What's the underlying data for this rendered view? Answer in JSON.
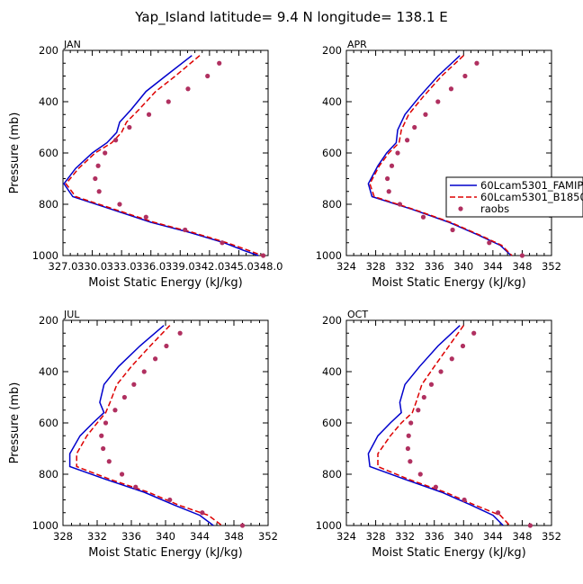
{
  "figure_title": "Yap_Island  latitude= 9.4 N longitude= 138.1 E",
  "legend": {
    "entries": [
      {
        "label": "60Lcam5301_FAMIP",
        "color": "#0000cc",
        "style": "solid"
      },
      {
        "label": "60Lcam5301_B1850",
        "color": "#dd0000",
        "style": "dashed"
      },
      {
        "label": "raobs",
        "color": "#b03060",
        "style": "dots"
      }
    ]
  },
  "chart_data": [
    {
      "type": "line",
      "title": "JAN",
      "xlabel": "Moist Static Energy (kJ/kg)",
      "ylabel": "Pressure (mb)",
      "xlim": [
        327.0,
        348.0
      ],
      "ylim": [
        1000,
        200
      ],
      "xticks": [
        "327.0",
        "330.0",
        "333.0",
        "336.0",
        "339.0",
        "342.0",
        "345.0",
        "348.0"
      ],
      "xtick_values": [
        327,
        330,
        333,
        336,
        339,
        342,
        345,
        348
      ],
      "yticks": [
        200,
        400,
        600,
        800,
        1000
      ],
      "series": [
        {
          "name": "60Lcam5301_FAMIP",
          "color": "#0000cc",
          "style": "solid",
          "points": [
            [
              340.2,
              220
            ],
            [
              337.5,
              300
            ],
            [
              335.5,
              360
            ],
            [
              334.0,
              430
            ],
            [
              332.8,
              480
            ],
            [
              332.5,
              520
            ],
            [
              331.5,
              560
            ],
            [
              330.0,
              600
            ],
            [
              328.3,
              660
            ],
            [
              327.1,
              720
            ],
            [
              328.0,
              770
            ],
            [
              332.0,
              820
            ],
            [
              336.0,
              870
            ],
            [
              340.0,
              910
            ],
            [
              343.5,
              950
            ],
            [
              345.5,
              980
            ],
            [
              347.0,
              1000
            ]
          ]
        },
        {
          "name": "60Lcam5301_B1850",
          "color": "#dd0000",
          "style": "dashed",
          "points": [
            [
              341.0,
              220
            ],
            [
              338.5,
              300
            ],
            [
              336.5,
              360
            ],
            [
              334.8,
              430
            ],
            [
              333.5,
              480
            ],
            [
              333.0,
              520
            ],
            [
              332.0,
              560
            ],
            [
              330.3,
              600
            ],
            [
              328.6,
              660
            ],
            [
              327.3,
              720
            ],
            [
              328.3,
              770
            ],
            [
              332.3,
              820
            ],
            [
              336.3,
              870
            ],
            [
              340.3,
              910
            ],
            [
              343.8,
              950
            ],
            [
              346.0,
              980
            ],
            [
              347.4,
              1000
            ]
          ]
        },
        {
          "name": "raobs",
          "color": "#b03060",
          "style": "dots",
          "points": [
            [
              343.0,
              250
            ],
            [
              341.8,
              300
            ],
            [
              339.8,
              350
            ],
            [
              337.8,
              400
            ],
            [
              335.8,
              450
            ],
            [
              333.8,
              500
            ],
            [
              332.4,
              550
            ],
            [
              331.3,
              600
            ],
            [
              330.6,
              650
            ],
            [
              330.3,
              700
            ],
            [
              330.7,
              750
            ],
            [
              332.8,
              800
            ],
            [
              335.5,
              850
            ],
            [
              339.5,
              900
            ],
            [
              343.3,
              950
            ],
            [
              347.5,
              1000
            ]
          ]
        }
      ]
    },
    {
      "type": "line",
      "title": "APR",
      "xlabel": "Moist Static Energy (kJ/kg)",
      "ylabel": "",
      "xlim": [
        324,
        352
      ],
      "ylim": [
        1000,
        200
      ],
      "xticks": [
        "324",
        "328",
        "332",
        "336",
        "340",
        "344",
        "348",
        "352"
      ],
      "xtick_values": [
        324,
        328,
        332,
        336,
        340,
        344,
        348,
        352
      ],
      "yticks": [
        200,
        400,
        600,
        800,
        1000
      ],
      "series": [
        {
          "name": "60Lcam5301_FAMIP",
          "color": "#0000cc",
          "style": "solid",
          "points": [
            [
              339.5,
              220
            ],
            [
              336.5,
              300
            ],
            [
              334.0,
              380
            ],
            [
              332.0,
              450
            ],
            [
              331.0,
              510
            ],
            [
              330.8,
              560
            ],
            [
              329.5,
              600
            ],
            [
              328.3,
              650
            ],
            [
              327.0,
              720
            ],
            [
              327.5,
              770
            ],
            [
              333.0,
              820
            ],
            [
              338.0,
              870
            ],
            [
              342.0,
              920
            ],
            [
              345.0,
              960
            ],
            [
              346.5,
              1000
            ]
          ]
        },
        {
          "name": "60Lcam5301_B1850",
          "color": "#dd0000",
          "style": "dashed",
          "points": [
            [
              340.0,
              220
            ],
            [
              337.0,
              300
            ],
            [
              334.5,
              380
            ],
            [
              332.5,
              450
            ],
            [
              331.5,
              510
            ],
            [
              331.2,
              560
            ],
            [
              329.8,
              600
            ],
            [
              328.5,
              650
            ],
            [
              327.2,
              720
            ],
            [
              327.8,
              770
            ],
            [
              333.2,
              820
            ],
            [
              338.2,
              870
            ],
            [
              342.2,
              920
            ],
            [
              345.2,
              960
            ],
            [
              346.6,
              1000
            ]
          ]
        },
        {
          "name": "raobs",
          "color": "#b03060",
          "style": "dots",
          "points": [
            [
              341.8,
              250
            ],
            [
              340.2,
              300
            ],
            [
              338.3,
              350
            ],
            [
              336.5,
              400
            ],
            [
              334.8,
              450
            ],
            [
              333.3,
              500
            ],
            [
              332.3,
              550
            ],
            [
              331.0,
              600
            ],
            [
              330.2,
              650
            ],
            [
              329.6,
              700
            ],
            [
              329.8,
              750
            ],
            [
              331.3,
              800
            ],
            [
              334.5,
              850
            ],
            [
              338.5,
              900
            ],
            [
              343.5,
              950
            ],
            [
              348.0,
              1000
            ]
          ]
        }
      ]
    },
    {
      "type": "line",
      "title": "JUL",
      "xlabel": "Moist Static Energy (kJ/kg)",
      "ylabel": "Pressure (mb)",
      "xlim": [
        328,
        352
      ],
      "ylim": [
        1000,
        200
      ],
      "xticks": [
        "328",
        "332",
        "336",
        "340",
        "344",
        "348",
        "352"
      ],
      "xtick_values": [
        328,
        332,
        336,
        340,
        344,
        348,
        352
      ],
      "yticks": [
        200,
        400,
        600,
        800,
        1000
      ],
      "series": [
        {
          "name": "60Lcam5301_FAMIP",
          "color": "#0000cc",
          "style": "solid",
          "points": [
            [
              339.8,
              220
            ],
            [
              337.0,
              300
            ],
            [
              334.5,
              380
            ],
            [
              332.8,
              450
            ],
            [
              332.3,
              520
            ],
            [
              332.8,
              560
            ],
            [
              331.5,
              600
            ],
            [
              330.0,
              650
            ],
            [
              328.8,
              720
            ],
            [
              328.8,
              770
            ],
            [
              333.0,
              820
            ],
            [
              337.5,
              870
            ],
            [
              341.0,
              920
            ],
            [
              344.0,
              960
            ],
            [
              345.6,
              1000
            ]
          ]
        },
        {
          "name": "60Lcam5301_B1850",
          "color": "#dd0000",
          "style": "dashed",
          "points": [
            [
              340.5,
              220
            ],
            [
              338.2,
              300
            ],
            [
              336.0,
              380
            ],
            [
              334.3,
              450
            ],
            [
              333.5,
              520
            ],
            [
              333.0,
              560
            ],
            [
              332.0,
              600
            ],
            [
              330.8,
              650
            ],
            [
              329.6,
              720
            ],
            [
              329.6,
              770
            ],
            [
              333.5,
              820
            ],
            [
              338.0,
              870
            ],
            [
              341.5,
              920
            ],
            [
              345.0,
              960
            ],
            [
              346.6,
              1000
            ]
          ]
        },
        {
          "name": "raobs",
          "color": "#b03060",
          "style": "dots",
          "points": [
            [
              341.7,
              250
            ],
            [
              340.1,
              300
            ],
            [
              338.8,
              350
            ],
            [
              337.5,
              400
            ],
            [
              336.3,
              450
            ],
            [
              335.2,
              500
            ],
            [
              334.1,
              550
            ],
            [
              333.0,
              600
            ],
            [
              332.5,
              650
            ],
            [
              332.7,
              700
            ],
            [
              333.4,
              750
            ],
            [
              334.9,
              800
            ],
            [
              336.5,
              850
            ],
            [
              340.5,
              900
            ],
            [
              344.3,
              950
            ],
            [
              349.0,
              1000
            ]
          ]
        }
      ]
    },
    {
      "type": "line",
      "title": "OCT",
      "xlabel": "Moist Static Energy (kJ/kg)",
      "ylabel": "",
      "xlim": [
        324,
        352
      ],
      "ylim": [
        1000,
        200
      ],
      "xticks": [
        "324",
        "328",
        "332",
        "336",
        "340",
        "344",
        "348",
        "352"
      ],
      "xtick_values": [
        324,
        328,
        332,
        336,
        340,
        344,
        348,
        352
      ],
      "yticks": [
        200,
        400,
        600,
        800,
        1000
      ],
      "series": [
        {
          "name": "60Lcam5301_FAMIP",
          "color": "#0000cc",
          "style": "solid",
          "points": [
            [
              339.5,
              220
            ],
            [
              336.5,
              300
            ],
            [
              334.0,
              380
            ],
            [
              332.0,
              450
            ],
            [
              331.3,
              520
            ],
            [
              331.5,
              560
            ],
            [
              330.0,
              600
            ],
            [
              328.3,
              650
            ],
            [
              327.0,
              720
            ],
            [
              327.2,
              770
            ],
            [
              332.0,
              820
            ],
            [
              337.0,
              870
            ],
            [
              341.0,
              920
            ],
            [
              344.0,
              960
            ],
            [
              345.4,
              1000
            ]
          ]
        },
        {
          "name": "60Lcam5301_B1850",
          "color": "#dd0000",
          "style": "dashed",
          "points": [
            [
              340.0,
              220
            ],
            [
              338.0,
              300
            ],
            [
              336.0,
              380
            ],
            [
              334.3,
              450
            ],
            [
              333.5,
              520
            ],
            [
              333.0,
              560
            ],
            [
              331.5,
              600
            ],
            [
              330.0,
              650
            ],
            [
              328.3,
              720
            ],
            [
              328.3,
              770
            ],
            [
              332.5,
              820
            ],
            [
              337.5,
              870
            ],
            [
              341.5,
              920
            ],
            [
              345.0,
              960
            ],
            [
              346.3,
              1000
            ]
          ]
        },
        {
          "name": "raobs",
          "color": "#b03060",
          "style": "dots",
          "points": [
            [
              341.4,
              250
            ],
            [
              339.9,
              300
            ],
            [
              338.4,
              350
            ],
            [
              336.9,
              400
            ],
            [
              335.6,
              450
            ],
            [
              334.6,
              500
            ],
            [
              333.8,
              550
            ],
            [
              332.8,
              600
            ],
            [
              332.5,
              650
            ],
            [
              332.4,
              700
            ],
            [
              332.7,
              750
            ],
            [
              334.1,
              800
            ],
            [
              336.2,
              850
            ],
            [
              340.1,
              900
            ],
            [
              344.7,
              950
            ],
            [
              349.1,
              1000
            ]
          ]
        }
      ]
    }
  ]
}
